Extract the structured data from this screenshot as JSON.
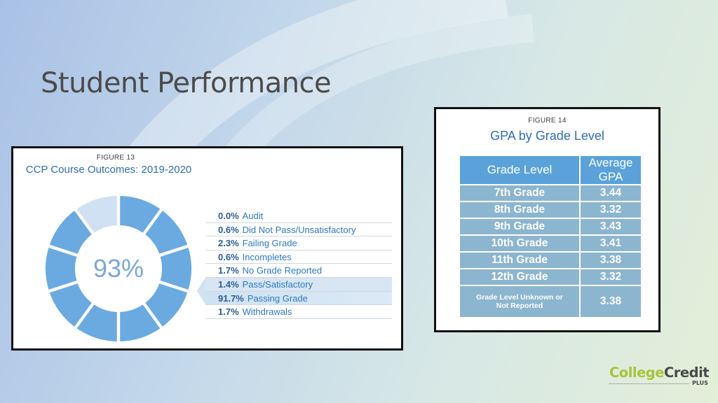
{
  "slide": {
    "title": "Student Performance"
  },
  "figure13": {
    "label": "FIGURE 13",
    "title": "CCP Course Outcomes: 2019-2020",
    "center_text": "93%",
    "legend": [
      {
        "pct": "0.0%",
        "label": "Audit"
      },
      {
        "pct": "0.6%",
        "label": "Did Not Pass/Unsatisfactory"
      },
      {
        "pct": "2.3%",
        "label": "Failing Grade"
      },
      {
        "pct": "0.6%",
        "label": "Incompletes"
      },
      {
        "pct": "1.7%",
        "label": "No Grade Reported"
      },
      {
        "pct": "1.4%",
        "label": "Pass/Satisfactory"
      },
      {
        "pct": "91.7%",
        "label": "Passing Grade"
      },
      {
        "pct": "1.7%",
        "label": "Withdrawals"
      }
    ],
    "colors": {
      "filled": "#6aaae0",
      "empty": "#cfe1f2",
      "text": "#2d79c3"
    }
  },
  "figure14": {
    "label": "FIGURE 14",
    "title": "GPA by Grade Level",
    "headers": [
      "Grade Level",
      "Average GPA"
    ],
    "rows": [
      {
        "grade": "7th Grade",
        "gpa": "3.44"
      },
      {
        "grade": "8th Grade",
        "gpa": "3.32"
      },
      {
        "grade": "9th Grade",
        "gpa": "3.43"
      },
      {
        "grade": "10th Grade",
        "gpa": "3.41"
      },
      {
        "grade": "11th Grade",
        "gpa": "3.38"
      },
      {
        "grade": "12th Grade",
        "gpa": "3.32"
      },
      {
        "grade": "Grade Level Unknown or Not Reported",
        "gpa": "3.38"
      }
    ],
    "colors": {
      "header": "#5aa2d9",
      "cell": "#8cb5d0"
    }
  },
  "logo": {
    "word1": "College",
    "word2": "Credit",
    "plus": "PLUS"
  }
}
